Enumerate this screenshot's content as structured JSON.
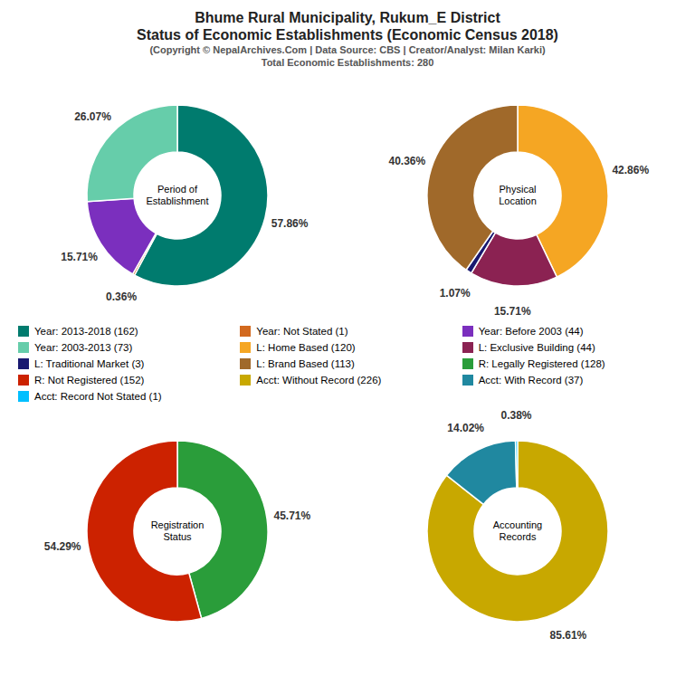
{
  "title": "Bhume Rural Municipality, Rukum_E District\nStatus of Economic Establishments (Economic Census 2018)",
  "subtitle": "(Copyright © NepalArchives.Com | Data Source: CBS | Creator/Analyst: Milan Karki)\nTotal Economic Establishments: 280",
  "chart_data": [
    {
      "type": "donut",
      "title": "Period of\nEstablishment",
      "categories": [
        "Year: 2013-2018 (162)",
        "Year: Not Stated (1)",
        "Year: Before 2003 (44)",
        "Year: 2003-2013 (73)"
      ],
      "values": [
        57.86,
        0.36,
        15.71,
        26.07
      ],
      "value_labels": [
        "57.86%",
        "0.36%",
        "15.71%",
        "26.07%"
      ],
      "colors": [
        "#007B6E",
        "#D2691E",
        "#7B2FBE",
        "#66CDAA"
      ],
      "data_labels": true
    },
    {
      "type": "donut",
      "title": "Physical\nLocation",
      "categories": [
        "L: Home Based (120)",
        "L: Exclusive Building (44)",
        "L: Traditional Market (3)",
        "L: Brand Based (113)"
      ],
      "values": [
        42.86,
        15.71,
        1.07,
        40.36
      ],
      "value_labels": [
        "42.86%",
        "15.71%",
        "1.07%",
        "40.36%"
      ],
      "colors": [
        "#F5A623",
        "#8B2252",
        "#191970",
        "#A0692A"
      ],
      "data_labels": true
    },
    {
      "type": "donut",
      "title": "Registration\nStatus",
      "categories": [
        "R: Legally Registered (128)",
        "R: Not Registered (152)"
      ],
      "values": [
        45.71,
        54.29
      ],
      "value_labels": [
        "45.71%",
        "54.29%"
      ],
      "colors": [
        "#2A9D3A",
        "#CC2200"
      ],
      "data_labels": true
    },
    {
      "type": "donut",
      "title": "Accounting\nRecords",
      "categories": [
        "Acct: Without Record (226)",
        "Acct: With Record (37)",
        "Acct: Record Not Stated (1)"
      ],
      "values": [
        85.61,
        14.02,
        0.38
      ],
      "value_labels": [
        "85.61%",
        "14.02%",
        "0.38%"
      ],
      "colors": [
        "#C8A800",
        "#2088A0",
        "#00BFFF"
      ],
      "data_labels": true
    }
  ]
}
